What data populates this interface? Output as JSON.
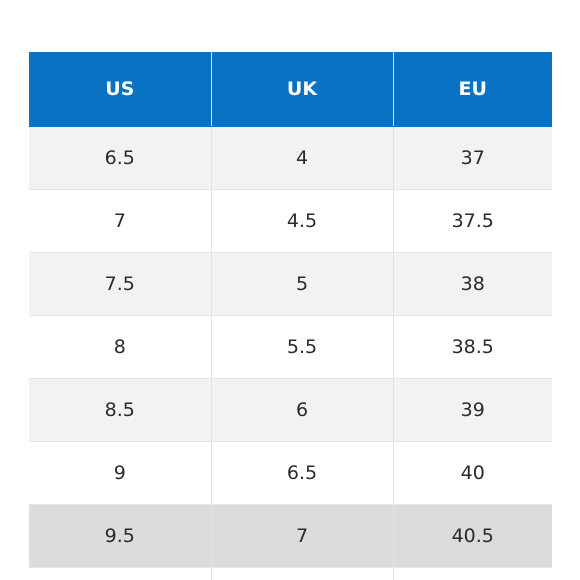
{
  "table": {
    "headers": [
      "US",
      "UK",
      "EU"
    ],
    "rows": [
      [
        "6.5",
        "4",
        "37"
      ],
      [
        "7",
        "4.5",
        "37.5"
      ],
      [
        "7.5",
        "5",
        "38"
      ],
      [
        "8",
        "5.5",
        "38.5"
      ],
      [
        "8.5",
        "6",
        "39"
      ],
      [
        "9",
        "6.5",
        "40"
      ],
      [
        "9.5",
        "7",
        "40.5"
      ]
    ],
    "highlighted_row_index": 6
  },
  "colors": {
    "header_background": "#0a72c4",
    "header_text": "#ffffff",
    "stripe": "#f2f2f2",
    "highlight": "#dcdcdc"
  }
}
